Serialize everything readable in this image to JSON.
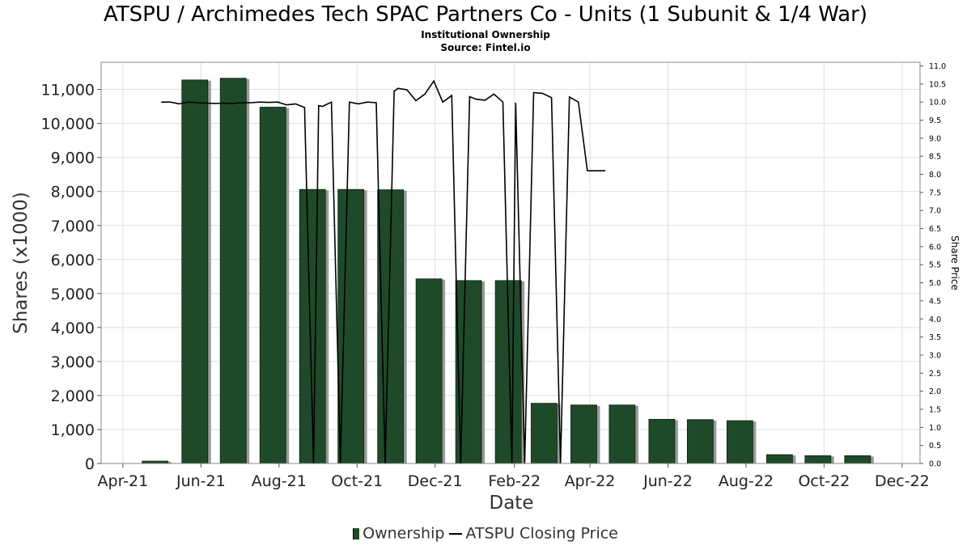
{
  "title": "ATSPU / Archimedes Tech SPAC Partners Co - Units (1 Subunit & 1/4 War)",
  "subtitle_1": "Institutional Ownership",
  "subtitle_2": "Source: Fintel.io",
  "legend": {
    "ownership_label": "Ownership",
    "price_label": "ATSPU Closing Price"
  },
  "colors": {
    "bar_fill": "#1f4a2a",
    "bar_shadow": "#9a9a9a",
    "line": "#000000",
    "grid": "#dddddd"
  },
  "chart_data": {
    "type": "bar",
    "xlabel": "Date",
    "ylabel": "Shares (x1000)",
    "y2label": "Share Price",
    "ylim": [
      0,
      11800
    ],
    "y2lim": [
      0,
      11.1
    ],
    "xlim": [
      "2021-03-15",
      "2022-12-15"
    ],
    "grid": true,
    "legend_position": "bottom",
    "x_ticks": [
      "Apr-21",
      "Jun-21",
      "Aug-21",
      "Oct-21",
      "Dec-21",
      "Feb-22",
      "Apr-22",
      "Jun-22",
      "Aug-22",
      "Oct-22",
      "Dec-22"
    ],
    "x_tick_dates": [
      "2021-04-01",
      "2021-06-01",
      "2021-08-01",
      "2021-10-01",
      "2021-12-01",
      "2022-02-01",
      "2022-04-01",
      "2022-06-01",
      "2022-08-01",
      "2022-10-01",
      "2022-12-01"
    ],
    "y_ticks": [
      0,
      1000,
      2000,
      3000,
      4000,
      5000,
      6000,
      7000,
      8000,
      9000,
      10000,
      11000
    ],
    "y_tick_labels": [
      "0",
      "1,000",
      "2,000",
      "3,000",
      "4,000",
      "5,000",
      "6,000",
      "7,000",
      "8,000",
      "9,000",
      "10,000",
      "11,000"
    ],
    "y2_ticks": [
      "0.0",
      "0.5",
      "1.0",
      "1.5",
      "2.0",
      "2.5",
      "3.0",
      "3.5",
      "4.0",
      "4.5",
      "5.0",
      "5.5",
      "6.0",
      "6.5",
      "7.0",
      "7.5",
      "8.0",
      "8.5",
      "9.0",
      "9.5",
      "10.0",
      "10.5",
      "11.0"
    ],
    "series": [
      {
        "name": "Ownership",
        "type": "bar",
        "x": [
          "2021-04-30",
          "2021-05-31",
          "2021-06-30",
          "2021-07-31",
          "2021-08-31",
          "2021-09-30",
          "2021-10-31",
          "2021-11-30",
          "2021-12-31",
          "2022-01-31",
          "2022-02-28",
          "2022-03-31",
          "2022-04-30",
          "2022-05-31",
          "2022-06-30",
          "2022-07-31",
          "2022-08-31",
          "2022-09-30",
          "2022-10-31"
        ],
        "values": [
          70,
          11280,
          11330,
          10480,
          8060,
          8060,
          8050,
          5430,
          5380,
          5380,
          1770,
          1720,
          1720,
          1300,
          1290,
          1260,
          260,
          230,
          230
        ]
      },
      {
        "name": "ATSPU Closing Price",
        "type": "line",
        "x": [
          "2021-05-01",
          "2021-05-08",
          "2021-05-15",
          "2021-05-22",
          "2021-05-29",
          "2021-06-05",
          "2021-06-12",
          "2021-06-19",
          "2021-06-26",
          "2021-07-03",
          "2021-07-10",
          "2021-07-17",
          "2021-07-24",
          "2021-07-31",
          "2021-08-07",
          "2021-08-14",
          "2021-08-21",
          "2021-08-28",
          "2021-09-01",
          "2021-09-04",
          "2021-09-11",
          "2021-09-18",
          "2021-09-25",
          "2021-10-02",
          "2021-10-09",
          "2021-10-16",
          "2021-10-23",
          "2021-10-30",
          "2021-11-02",
          "2021-11-09",
          "2021-11-16",
          "2021-11-23",
          "2021-11-30",
          "2021-12-07",
          "2021-12-14",
          "2021-12-21",
          "2021-12-28",
          "2022-01-02",
          "2022-01-09",
          "2022-01-16",
          "2022-01-23",
          "2022-01-30",
          "2022-02-02",
          "2022-02-09",
          "2022-02-16",
          "2022-02-23",
          "2022-03-02",
          "2022-03-09",
          "2022-03-16",
          "2022-03-23",
          "2022-03-30",
          "2022-04-06",
          "2022-04-13"
        ],
        "values": [
          10.0,
          10.0,
          9.95,
          10.0,
          9.98,
          9.97,
          9.96,
          9.97,
          9.96,
          9.98,
          9.98,
          10.0,
          9.99,
          10.0,
          9.92,
          9.95,
          9.85,
          0.0,
          9.9,
          9.88,
          10.0,
          0.0,
          10.0,
          9.95,
          10.0,
          9.98,
          0.0,
          10.3,
          10.38,
          10.34,
          10.04,
          10.22,
          10.58,
          10.0,
          10.18,
          0.0,
          10.15,
          10.08,
          10.05,
          10.22,
          10.0,
          0.0,
          9.98,
          0.0,
          10.26,
          10.24,
          10.12,
          0.0,
          10.14,
          10.0,
          8.1,
          8.1,
          8.1
        ]
      }
    ]
  }
}
